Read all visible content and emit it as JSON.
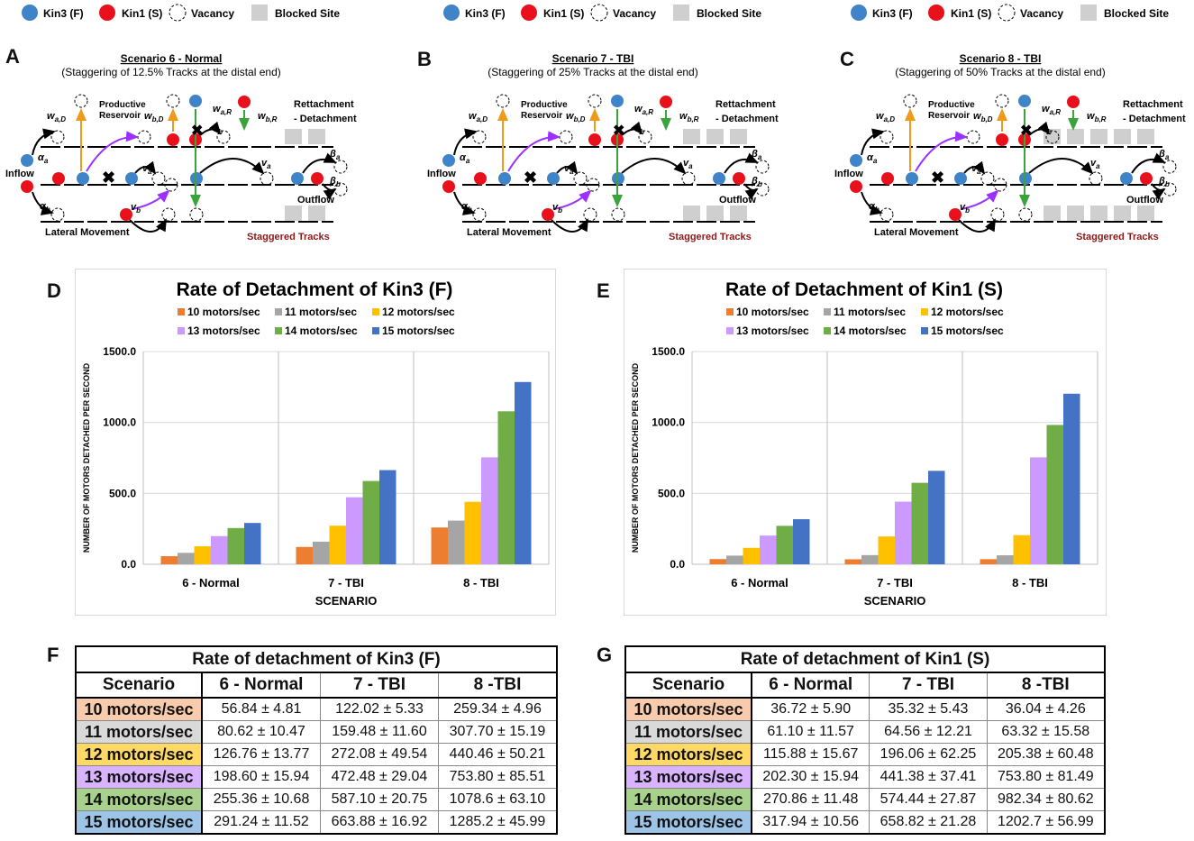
{
  "legend": {
    "kin3": "Kin3 (F)",
    "kin1": "Kin1 (S)",
    "vacancy": "Vacancy",
    "blocked": "Blocked Site"
  },
  "scenarios": [
    {
      "letter": "A",
      "title": "Scenario 6 - Normal",
      "subtitle": "(Staggering of 12.5% Tracks at the distal end)"
    },
    {
      "letter": "B",
      "title": "Scenario 7 - TBI",
      "subtitle": "(Staggering of 25% Tracks at the distal end)"
    },
    {
      "letter": "C",
      "title": "Scenario 8 - TBI",
      "subtitle": "(Staggering of 50% Tracks at the distal end)"
    }
  ],
  "diagram_labels": {
    "productive": "Productive",
    "reservoir": "Reservoir",
    "reattach1": "Rettachment",
    "reattach2": "- Detachment",
    "inflow": "Inflow",
    "outflow": "Outflow",
    "lateral": "Lateral Movement",
    "staggered": "Staggered Tracks",
    "w_aD": "w",
    "w_aD_sub": "a,D",
    "w_bD": "w",
    "w_bD_sub": "b,D",
    "w_aR": "w",
    "w_aR_sub": "a,R",
    "w_bR": "w",
    "w_bR_sub": "b,R",
    "v_b": "v",
    "v_b_sub": "b",
    "v_a": "v",
    "v_a_sub": "a",
    "alpha_a": "α",
    "alpha_a_sub": "a",
    "alpha_b": "α",
    "alpha_b_sub": "b",
    "beta_a": "β",
    "beta_a_sub": "a",
    "beta_b": "β",
    "beta_b_sub": "b"
  },
  "colors": {
    "kin3": "#3f83c8",
    "kin1": "#e8101a",
    "orange_arrow": "#ef9a1b",
    "green_arrow": "#3aa33a",
    "purple_arrow": "#9b30ff",
    "blocked": "#cfcfcf",
    "staggered": "#8b1a1a"
  },
  "series_colors": [
    "#ed7d31",
    "#a5a5a5",
    "#ffc000",
    "#cc99ff",
    "#70ad47",
    "#4472c4"
  ],
  "chart_data": [
    {
      "letter": "D",
      "type": "bar",
      "title": "Rate of Detachment of Kin3 (F)",
      "xlabel": "SCENARIO",
      "ylabel": "NUMBER OF MOTORS DETACHED PER SECOND",
      "ylim": [
        0,
        1500
      ],
      "yticks": [
        "0.0",
        "500.0",
        "1000.0",
        "1500.0"
      ],
      "ytick_values": [
        0,
        500,
        1000,
        1500
      ],
      "categories": [
        "6 - Normal",
        "7 - TBI",
        "8 - TBI"
      ],
      "series": [
        {
          "name": "10 motors/sec",
          "values": [
            56.84,
            122.02,
            259.34
          ]
        },
        {
          "name": "11 motors/sec",
          "values": [
            80.62,
            159.48,
            307.7
          ]
        },
        {
          "name": "12 motors/sec",
          "values": [
            126.76,
            272.08,
            440.46
          ]
        },
        {
          "name": "13 motors/sec",
          "values": [
            198.6,
            472.48,
            753.8
          ]
        },
        {
          "name": "14 motors/sec",
          "values": [
            255.36,
            587.1,
            1078.6
          ]
        },
        {
          "name": "15 motors/sec",
          "values": [
            291.24,
            663.88,
            1285.2
          ]
        }
      ]
    },
    {
      "letter": "E",
      "type": "bar",
      "title": "Rate of Detachment of Kin1 (S)",
      "xlabel": "SCENARIO",
      "ylabel": "NUMBER OF MOTORS DETACHED PER SECOND",
      "ylim": [
        0,
        1500
      ],
      "yticks": [
        "0.0",
        "500.0",
        "1000.0",
        "1500.0"
      ],
      "ytick_values": [
        0,
        500,
        1000,
        1500
      ],
      "categories": [
        "6 - Normal",
        "7 - TBI",
        "8 - TBI"
      ],
      "series": [
        {
          "name": "10 motors/sec",
          "values": [
            36.72,
            35.32,
            36.04
          ]
        },
        {
          "name": "11 motors/sec",
          "values": [
            61.1,
            64.56,
            63.32
          ]
        },
        {
          "name": "12 motors/sec",
          "values": [
            115.88,
            196.06,
            205.38
          ]
        },
        {
          "name": "13 motors/sec",
          "values": [
            202.3,
            441.38,
            753.8
          ]
        },
        {
          "name": "14 motors/sec",
          "values": [
            270.86,
            574.44,
            982.34
          ]
        },
        {
          "name": "15 motors/sec",
          "values": [
            317.94,
            658.82,
            1202.7
          ]
        }
      ]
    }
  ],
  "tables": [
    {
      "letter": "F",
      "title": "Rate of detachment of Kin3 (F)",
      "headers": [
        "Scenario",
        "6 - Normal",
        "7 - TBI",
        "8 -TBI"
      ],
      "rows": [
        [
          "10 motors/sec",
          "56.84 ± 4.81",
          "122.02 ± 5.33",
          "259.34 ± 4.96"
        ],
        [
          "11 motors/sec",
          "80.62 ± 10.47",
          "159.48 ± 11.60",
          "307.70 ± 15.19"
        ],
        [
          "12 motors/sec",
          "126.76 ± 13.77",
          "272.08 ± 49.54",
          "440.46 ± 50.21"
        ],
        [
          "13 motors/sec",
          "198.60 ± 15.94",
          "472.48 ± 29.04",
          "753.80 ± 85.51"
        ],
        [
          "14 motors/sec",
          "255.36 ± 10.68",
          "587.10 ± 20.75",
          "1078.6 ± 63.10"
        ],
        [
          "15 motors/sec",
          "291.24 ± 11.52",
          "663.88 ± 16.92",
          "1285.2 ± 45.99"
        ]
      ]
    },
    {
      "letter": "G",
      "title": "Rate of detachment of Kin1 (S)",
      "headers": [
        "Scenario",
        "6 - Normal",
        "7 - TBI",
        "8 -TBI"
      ],
      "rows": [
        [
          "10 motors/sec",
          "36.72 ± 5.90",
          "35.32 ± 5.43",
          "36.04 ± 4.26"
        ],
        [
          "11 motors/sec",
          "61.10 ± 11.57",
          "64.56 ± 12.21",
          "63.32 ± 15.58"
        ],
        [
          "12 motors/sec",
          "115.88 ± 15.67",
          "196.06 ± 62.25",
          "205.38 ± 60.48"
        ],
        [
          "13 motors/sec",
          "202.30 ± 15.94",
          "441.38 ± 37.41",
          "753.80 ± 81.49"
        ],
        [
          "14 motors/sec",
          "270.86 ± 11.48",
          "574.44 ± 27.87",
          "982.34 ± 80.62"
        ],
        [
          "15 motors/sec",
          "317.94 ± 10.56",
          "658.82 ± 21.28",
          "1202.7 ± 56.99"
        ]
      ]
    }
  ],
  "row_colors": [
    "#f8cbad",
    "#d9d9d9",
    "#ffd966",
    "#d9b3ff",
    "#a9d18e",
    "#9dc3e6"
  ]
}
